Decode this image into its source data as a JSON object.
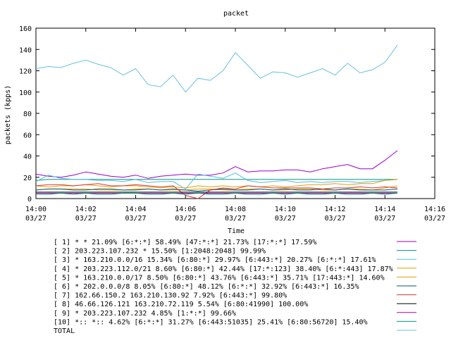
{
  "chart_data": {
    "type": "line",
    "title": "packet",
    "xlabel": "Time",
    "ylabel": "packets (kpps)",
    "xlim": [
      0,
      16
    ],
    "ylim": [
      0,
      160
    ],
    "y_ticks": [
      0,
      20,
      40,
      60,
      80,
      100,
      120,
      140,
      160
    ],
    "x_ticks": [
      {
        "v": 0,
        "time": "14:00",
        "date": "03/27"
      },
      {
        "v": 2,
        "time": "14:02",
        "date": "03/27"
      },
      {
        "v": 4,
        "time": "14:04",
        "date": "03/27"
      },
      {
        "v": 6,
        "time": "14:06",
        "date": "03/27"
      },
      {
        "v": 8,
        "time": "14:08",
        "date": "03/27"
      },
      {
        "v": 10,
        "time": "14:10",
        "date": "03/27"
      },
      {
        "v": 12,
        "time": "14:12",
        "date": "03/27"
      },
      {
        "v": 14,
        "time": "14:14",
        "date": "03/27"
      },
      {
        "v": 16,
        "time": "14:16",
        "date": "03/27"
      }
    ],
    "grid": false,
    "legend_position": "bottom",
    "x": [
      0,
      0.5,
      1,
      1.5,
      2,
      2.5,
      3,
      3.5,
      4,
      4.5,
      5,
      5.5,
      6,
      6.5,
      7,
      7.5,
      8,
      8.5,
      9,
      9.5,
      10,
      10.5,
      11,
      11.5,
      12,
      12.5,
      13,
      13.5,
      14,
      14.5
    ],
    "series": [
      {
        "name": "[ 1] * * 21.09%  [6:*:*] 58.49% [47:*:*] 21.73% [17:*:*] 17.59%",
        "color": "#9900cc",
        "values": [
          23,
          21,
          20,
          22,
          25,
          23,
          21,
          20,
          22,
          19,
          21,
          22,
          23,
          22,
          22,
          24,
          30,
          25,
          26,
          26,
          27,
          27,
          25,
          28,
          30,
          32,
          28,
          28,
          36,
          45
        ]
      },
      {
        "name": "[ 2] 203.223.107.232 * 15.50%  [1:2048:2048] 99.99%",
        "color": "#009980",
        "values": [
          17,
          18,
          18,
          18,
          18,
          18,
          18,
          18,
          18,
          18,
          18,
          18,
          18,
          18,
          18,
          18,
          18,
          18,
          18,
          18,
          18,
          18,
          18,
          18,
          18,
          18,
          18,
          18,
          18,
          18
        ]
      },
      {
        "name": "[ 3] * 163.210.0.0/16 15.34%  [6:80:*] 29.97% [6:443:*] 20.27% [6:*:*] 17.61%",
        "color": "#55bbe0",
        "values": [
          16,
          22,
          19,
          18,
          18,
          17,
          17,
          16,
          18,
          15,
          16,
          16,
          9,
          23,
          21,
          19,
          24,
          17,
          15,
          16,
          17,
          15,
          16,
          15,
          16,
          16,
          15,
          16,
          17,
          18
        ]
      },
      {
        "name": "[ 4] * 203.223.112.0/21 8.60%  [6:80:*] 42.44% [17:*:123] 38.40% [6:*:443] 17.87%",
        "color": "#e0a000",
        "values": [
          12,
          11,
          12,
          12,
          13,
          12,
          11,
          12,
          12,
          11,
          10,
          11,
          10,
          12,
          11,
          12,
          11,
          12,
          11,
          12,
          11,
          12,
          13,
          13,
          14,
          13,
          14,
          14,
          17,
          18
        ]
      },
      {
        "name": "[ 5] * 163.210.0.0/17 8.50%  [6:80:*] 43.76% [6:443:*] 35.71% [17:443:*] 14.60%",
        "color": "#e0a000",
        "values": [
          8,
          9,
          9,
          9,
          9,
          8,
          8,
          8,
          9,
          9,
          8,
          8,
          8,
          9,
          9,
          8,
          8,
          9,
          9,
          8,
          8,
          9,
          9,
          8,
          8,
          9,
          9,
          8,
          10,
          12
        ]
      },
      {
        "name": "[ 6] * 202.0.0.0/8 8.05%  [6:80:*] 48.12% [6:*:*] 32.92% [6:443:*] 16.35%",
        "color": "#005577",
        "values": [
          8,
          9,
          9,
          8,
          8,
          9,
          9,
          8,
          8,
          9,
          8,
          9,
          8,
          7,
          8,
          9,
          8,
          8,
          9,
          8,
          9,
          8,
          8,
          9,
          8,
          9,
          8,
          8,
          8,
          9
        ]
      },
      {
        "name": "[ 7] 162.66.150.2 163.210.130.92 7.92%  [6:443:*] 99.80%",
        "color": "#dd3333",
        "values": [
          12,
          13,
          13,
          12,
          13,
          14,
          12,
          12,
          13,
          12,
          11,
          12,
          3,
          0,
          8,
          10,
          9,
          12,
          11,
          10,
          10,
          10,
          10,
          9,
          10,
          10,
          11,
          10,
          11,
          10
        ]
      },
      {
        "name": "[ 8] 46.66.126.121 163.210.72.119 5.54%  [6:80:41990] 100.00%",
        "color": "#000000",
        "values": [
          6,
          6,
          6,
          6,
          6,
          6,
          6,
          6,
          6,
          6,
          6,
          6,
          6,
          6,
          6,
          6,
          6,
          6,
          6,
          6,
          6,
          6,
          6,
          6,
          6,
          6,
          6,
          6,
          6,
          6
        ]
      },
      {
        "name": "[ 9] * 203.223.107.232 4.85%  [1:*:*] 99.66%",
        "color": "#aa00aa",
        "values": [
          5,
          5,
          5,
          5,
          5,
          5,
          5,
          5,
          5,
          5,
          5,
          5,
          5,
          5,
          5,
          5,
          5,
          5,
          5,
          5,
          5,
          5,
          5,
          5,
          5,
          5,
          5,
          5,
          5,
          5
        ]
      },
      {
        "name": "[10] *:: *:: 4.62%  [6:*:*] 31.27% [6:443:51035] 25.41% [6:80:56720] 15.40%",
        "color": "#009977",
        "values": [
          4,
          4,
          5,
          4,
          5,
          4,
          4,
          5,
          5,
          4,
          4,
          5,
          4,
          5,
          4,
          4,
          5,
          4,
          4,
          5,
          4,
          5,
          4,
          4,
          5,
          4,
          4,
          5,
          4,
          5
        ]
      },
      {
        "name": "TOTAL",
        "color": "#66c0e0",
        "values": [
          122,
          124,
          123,
          127,
          130,
          126,
          123,
          116,
          122,
          107,
          105,
          116,
          100,
          113,
          111,
          120,
          137,
          125,
          113,
          119,
          118,
          114,
          118,
          122,
          116,
          127,
          118,
          121,
          128,
          144
        ]
      }
    ]
  }
}
